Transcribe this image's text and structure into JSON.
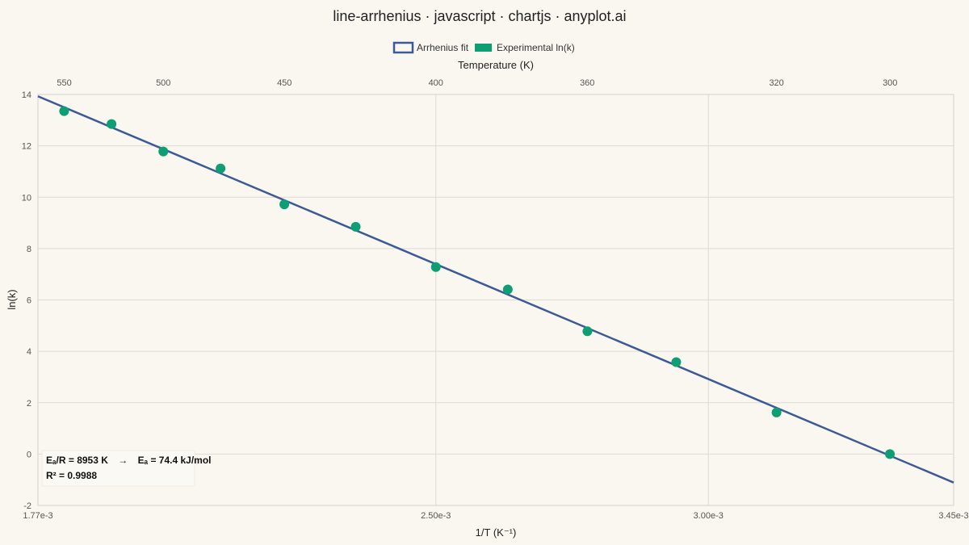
{
  "page": {
    "title": "line-arrhenius · javascript · chartjs · anyplot.ai"
  },
  "legend": {
    "items": [
      {
        "label": "Arrhenius fit",
        "style": "line-box",
        "color": "#3c5a96"
      },
      {
        "label": "Experimental ln(k)",
        "style": "filled-box",
        "color": "#0e9e74"
      }
    ]
  },
  "annotation": {
    "line1_left": "Eₐ/R = 8953 K",
    "line1_arrow": "→",
    "line1_right": "Eₐ = 74.4 kJ/mol",
    "line2": "R² = 0.9988"
  },
  "chart_data": {
    "type": "scatter",
    "title": "line-arrhenius · javascript · chartjs · anyplot.ai",
    "xlabel": "1/T  (K⁻¹)",
    "ylabel": "ln(k)",
    "x2label": "Temperature (K)",
    "xlim": [
      0.00177,
      0.00345
    ],
    "ylim": [
      -2,
      14
    ],
    "x_ticks": [
      {
        "value": 0.00177,
        "label": "1.77e-3"
      },
      {
        "value": 0.0025,
        "label": "2.50e-3"
      },
      {
        "value": 0.003,
        "label": "3.00e-3"
      },
      {
        "value": 0.00345,
        "label": "3.45e-3"
      }
    ],
    "y_ticks": [
      -2,
      0,
      2,
      4,
      6,
      8,
      10,
      12,
      14
    ],
    "top_axis_ticks": [
      550,
      500,
      450,
      400,
      360,
      320,
      300
    ],
    "grid": true,
    "legend_position": "top-center",
    "series": [
      {
        "name": "Experimental ln(k)",
        "type": "scatter",
        "color": "#0e9e74",
        "x": [
          0.001818,
          0.001905,
          0.002,
          0.002105,
          0.002222,
          0.002353,
          0.0025,
          0.002632,
          0.002778,
          0.002941,
          0.003125,
          0.003333
        ],
        "y": [
          13.35,
          12.85,
          11.78,
          11.12,
          9.72,
          8.85,
          7.28,
          6.41,
          4.78,
          3.58,
          1.62,
          0.0
        ]
      },
      {
        "name": "Arrhenius fit",
        "type": "line",
        "color": "#3c5a96",
        "x": [
          0.00177,
          0.00345
        ],
        "y": [
          13.93,
          -1.11
        ]
      }
    ]
  }
}
